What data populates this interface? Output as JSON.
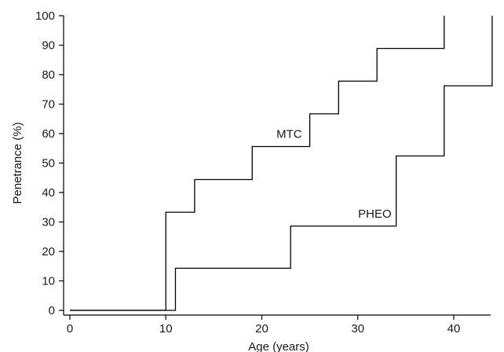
{
  "chart_data": {
    "type": "line",
    "step": true,
    "xlabel": "Age (years)",
    "ylabel": "Penetrance (%)",
    "xlim": [
      0,
      44
    ],
    "ylim": [
      0,
      100
    ],
    "xticks": [
      0,
      10,
      20,
      30,
      40
    ],
    "yticks": [
      0,
      10,
      20,
      30,
      40,
      50,
      60,
      70,
      80,
      90,
      100
    ],
    "grid": false,
    "series": [
      {
        "name": "MTC",
        "x": [
          0,
          10,
          13,
          19,
          25,
          28,
          32,
          39
        ],
        "y": [
          0,
          33.3,
          44.4,
          55.6,
          66.7,
          77.8,
          88.9,
          100
        ]
      },
      {
        "name": "PHEO",
        "x": [
          0,
          11,
          23,
          34,
          39,
          44
        ],
        "y": [
          0,
          14.3,
          28.6,
          52.4,
          76.2,
          100
        ]
      }
    ]
  }
}
